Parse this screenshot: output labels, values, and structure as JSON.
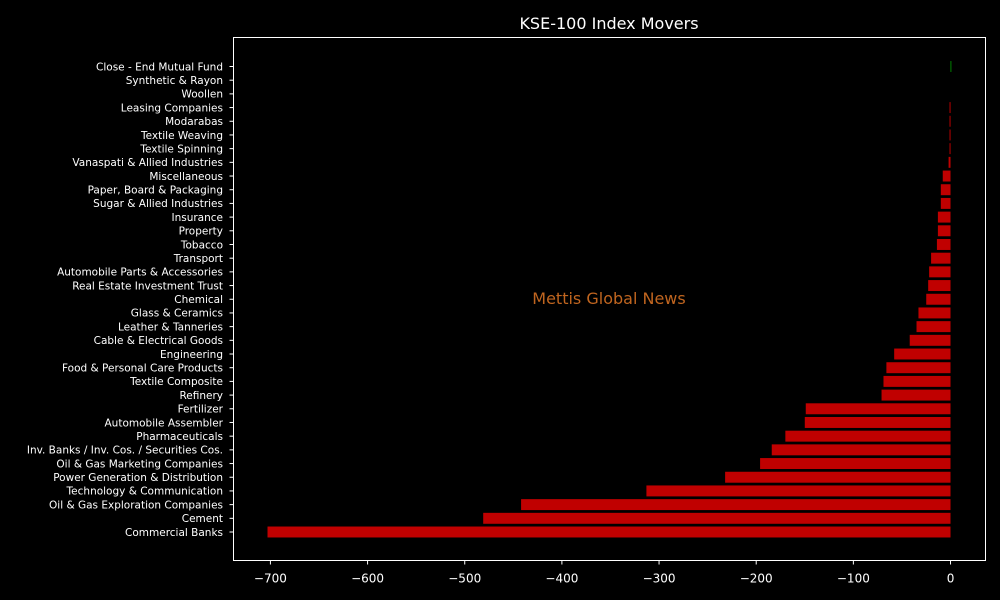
{
  "chart_data": {
    "type": "bar",
    "orientation": "horizontal",
    "title": "KSE-100 Index Movers",
    "watermark": "Mettis Global News",
    "xlabel": "",
    "ylabel": "",
    "xlim": [
      -738,
      36
    ],
    "xticks": [
      -700,
      -600,
      -500,
      -400,
      -300,
      -200,
      -100,
      0
    ],
    "xtick_labels": [
      "−700",
      "−600",
      "−500",
      "−400",
      "−300",
      "−200",
      "−100",
      "0"
    ],
    "grid": false,
    "colors": {
      "background": "#000000",
      "axes": "#ffffff",
      "text": "#ffffff",
      "negative": "#c00000",
      "positive": "#00a000",
      "watermark": "#c0651f"
    },
    "categories": [
      "Commercial Banks",
      "Cement",
      "Oil & Gas Exploration Companies",
      "Technology & Communication",
      "Power Generation & Distribution",
      "Oil & Gas Marketing Companies",
      "Inv. Banks / Inv. Cos. / Securities Cos.",
      "Pharmaceuticals",
      "Automobile Assembler",
      "Fertilizer",
      "Refinery",
      "Textile Composite",
      "Food & Personal Care Products",
      "Engineering",
      "Cable & Electrical Goods",
      "Leather & Tanneries",
      "Glass & Ceramics",
      "Chemical",
      "Real Estate Investment Trust",
      "Automobile Parts & Accessories",
      "Transport",
      "Tobacco",
      "Property",
      "Insurance",
      "Sugar & Allied Industries",
      "Paper, Board & Packaging",
      "Miscellaneous",
      "Vanaspati & Allied Industries",
      "Textile Spinning",
      "Textile Weaving",
      "Modarabas",
      "Leasing Companies",
      "Woollen",
      "Synthetic & Rayon",
      "Close - End Mutual Fund"
    ],
    "values": [
      -703,
      -481,
      -442,
      -313,
      -232,
      -196,
      -184,
      -170,
      -150,
      -149,
      -71,
      -69,
      -66,
      -58,
      -42,
      -35,
      -33,
      -25,
      -23,
      -22,
      -20,
      -14,
      -13,
      -13,
      -10,
      -10,
      -8,
      -2,
      -1,
      -1,
      -1,
      -1,
      0,
      0,
      0.4
    ]
  }
}
